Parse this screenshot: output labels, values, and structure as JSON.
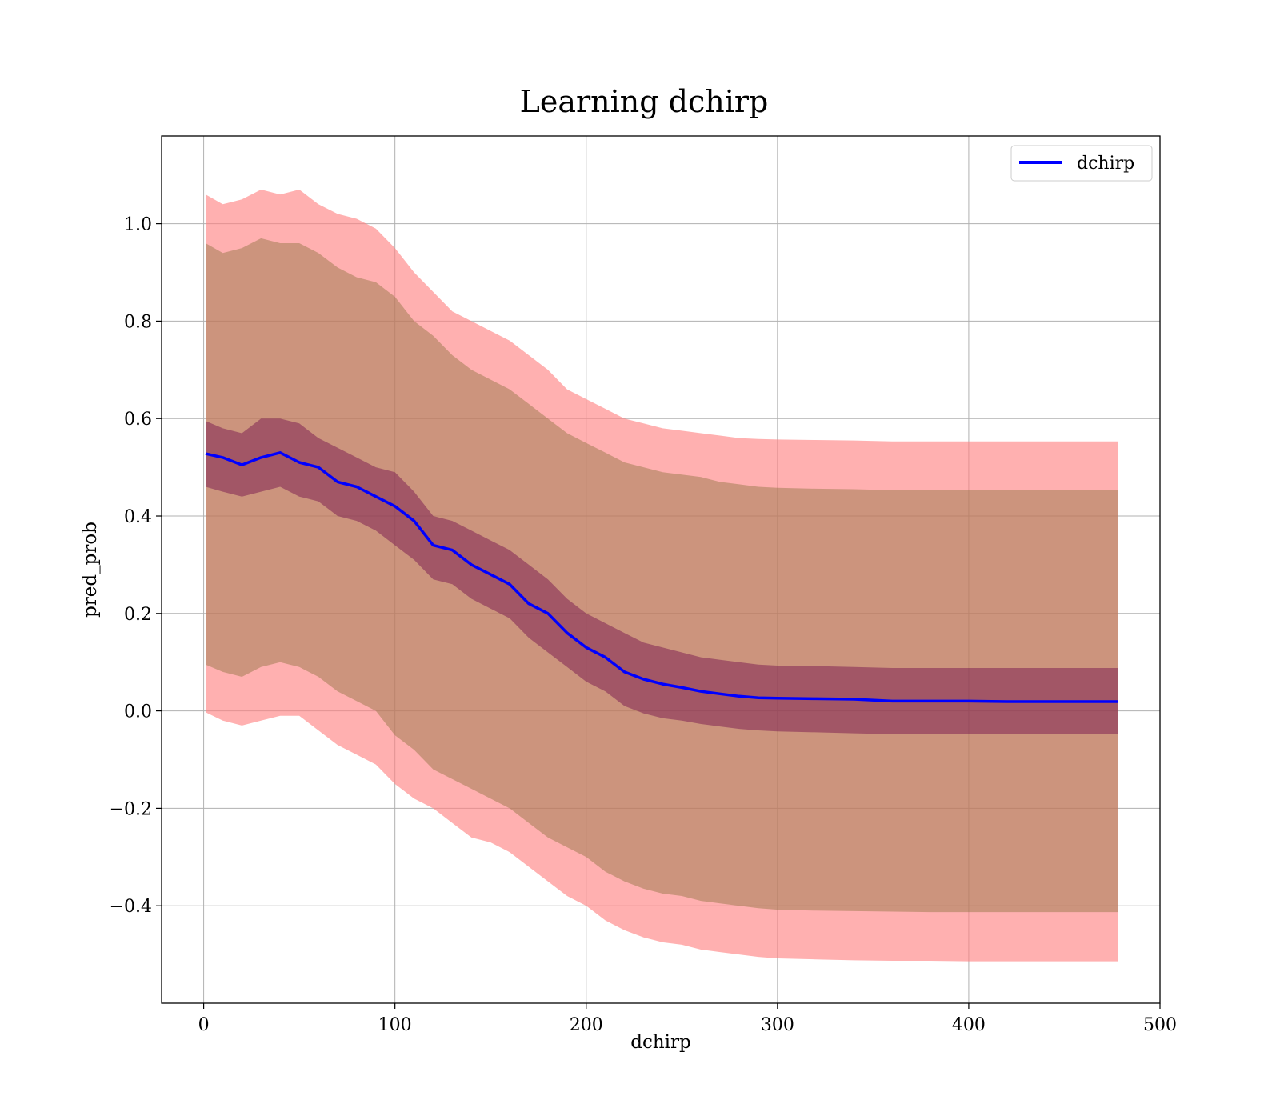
{
  "chart_data": {
    "type": "line",
    "title": "Learning dchirp",
    "xlabel": "dchirp",
    "ylabel": "pred_prob",
    "xlim": [
      -22,
      500
    ],
    "ylim": [
      -0.6,
      1.18
    ],
    "grid": true,
    "legend_position": "top-right",
    "x_ticks": [
      0,
      100,
      200,
      300,
      400,
      500
    ],
    "x_tick_labels": [
      "0",
      "100",
      "200",
      "300",
      "400",
      "500"
    ],
    "y_ticks": [
      -0.4,
      -0.2,
      0.0,
      0.2,
      0.4,
      0.6,
      0.8,
      1.0
    ],
    "y_tick_labels": [
      "−0.4",
      "−0.2",
      "0.0",
      "0.2",
      "0.4",
      "0.6",
      "0.8",
      "1.0"
    ],
    "colors": {
      "mean_line": "#0000ff",
      "outer_band": "#ff8080",
      "outer_band_opacity": 0.62,
      "inner_band": "#8d7340",
      "inner_band_opacity": 0.45,
      "narrow_band": "#6e0a4c",
      "narrow_band_opacity": 0.45,
      "grid": "#b0b0b0"
    },
    "x": [
      1,
      10,
      20,
      30,
      40,
      50,
      60,
      70,
      80,
      90,
      100,
      110,
      120,
      130,
      140,
      150,
      160,
      170,
      180,
      190,
      200,
      210,
      220,
      230,
      240,
      250,
      260,
      270,
      280,
      290,
      300,
      320,
      340,
      360,
      380,
      400,
      420,
      440,
      460,
      478
    ],
    "series": [
      {
        "name": "dchirp",
        "values": [
          0.528,
          0.52,
          0.505,
          0.52,
          0.53,
          0.51,
          0.5,
          0.47,
          0.46,
          0.44,
          0.42,
          0.39,
          0.34,
          0.33,
          0.3,
          0.28,
          0.26,
          0.22,
          0.2,
          0.16,
          0.13,
          0.11,
          0.08,
          0.065,
          0.055,
          0.048,
          0.04,
          0.035,
          0.03,
          0.027,
          0.026,
          0.025,
          0.024,
          0.02,
          0.02,
          0.02,
          0.019,
          0.019,
          0.019,
          0.019
        ]
      }
    ],
    "bands": [
      {
        "role": "outer",
        "upper": [
          1.06,
          1.04,
          1.05,
          1.07,
          1.06,
          1.07,
          1.04,
          1.02,
          1.01,
          0.99,
          0.95,
          0.9,
          0.86,
          0.82,
          0.8,
          0.78,
          0.76,
          0.73,
          0.7,
          0.66,
          0.64,
          0.62,
          0.6,
          0.59,
          0.58,
          0.575,
          0.57,
          0.565,
          0.56,
          0.558,
          0.557,
          0.556,
          0.555,
          0.553,
          0.553,
          0.553,
          0.553,
          0.553,
          0.553,
          0.553
        ],
        "lower": [
          -0.003,
          -0.02,
          -0.03,
          -0.02,
          -0.01,
          -0.01,
          -0.04,
          -0.07,
          -0.09,
          -0.11,
          -0.15,
          -0.18,
          -0.2,
          -0.23,
          -0.26,
          -0.27,
          -0.29,
          -0.32,
          -0.35,
          -0.38,
          -0.4,
          -0.43,
          -0.45,
          -0.465,
          -0.475,
          -0.48,
          -0.49,
          -0.495,
          -0.5,
          -0.505,
          -0.508,
          -0.51,
          -0.512,
          -0.513,
          -0.513,
          -0.514,
          -0.514,
          -0.514,
          -0.514,
          -0.514
        ]
      },
      {
        "role": "inner",
        "upper": [
          0.96,
          0.94,
          0.95,
          0.97,
          0.96,
          0.96,
          0.94,
          0.91,
          0.89,
          0.88,
          0.85,
          0.8,
          0.77,
          0.73,
          0.7,
          0.68,
          0.66,
          0.63,
          0.6,
          0.57,
          0.55,
          0.53,
          0.51,
          0.5,
          0.49,
          0.485,
          0.48,
          0.47,
          0.465,
          0.46,
          0.458,
          0.456,
          0.455,
          0.453,
          0.453,
          0.453,
          0.453,
          0.453,
          0.453,
          0.453
        ],
        "lower": [
          0.095,
          0.08,
          0.07,
          0.09,
          0.1,
          0.09,
          0.07,
          0.04,
          0.02,
          0.0,
          -0.05,
          -0.08,
          -0.12,
          -0.14,
          -0.16,
          -0.18,
          -0.2,
          -0.23,
          -0.26,
          -0.28,
          -0.3,
          -0.33,
          -0.35,
          -0.365,
          -0.375,
          -0.38,
          -0.39,
          -0.395,
          -0.4,
          -0.405,
          -0.408,
          -0.41,
          -0.411,
          -0.412,
          -0.413,
          -0.413,
          -0.413,
          -0.413,
          -0.413,
          -0.413
        ]
      },
      {
        "role": "narrow",
        "upper": [
          0.595,
          0.58,
          0.57,
          0.6,
          0.6,
          0.59,
          0.56,
          0.54,
          0.52,
          0.5,
          0.49,
          0.45,
          0.4,
          0.39,
          0.37,
          0.35,
          0.33,
          0.3,
          0.27,
          0.23,
          0.2,
          0.18,
          0.16,
          0.14,
          0.13,
          0.12,
          0.11,
          0.105,
          0.1,
          0.095,
          0.093,
          0.092,
          0.09,
          0.088,
          0.088,
          0.088,
          0.088,
          0.088,
          0.088,
          0.088
        ],
        "lower": [
          0.46,
          0.45,
          0.44,
          0.45,
          0.46,
          0.44,
          0.43,
          0.4,
          0.39,
          0.37,
          0.34,
          0.31,
          0.27,
          0.26,
          0.23,
          0.21,
          0.19,
          0.15,
          0.12,
          0.09,
          0.06,
          0.04,
          0.01,
          -0.005,
          -0.015,
          -0.02,
          -0.027,
          -0.032,
          -0.037,
          -0.04,
          -0.042,
          -0.044,
          -0.046,
          -0.048,
          -0.048,
          -0.048,
          -0.048,
          -0.048,
          -0.048,
          -0.048
        ]
      }
    ]
  }
}
